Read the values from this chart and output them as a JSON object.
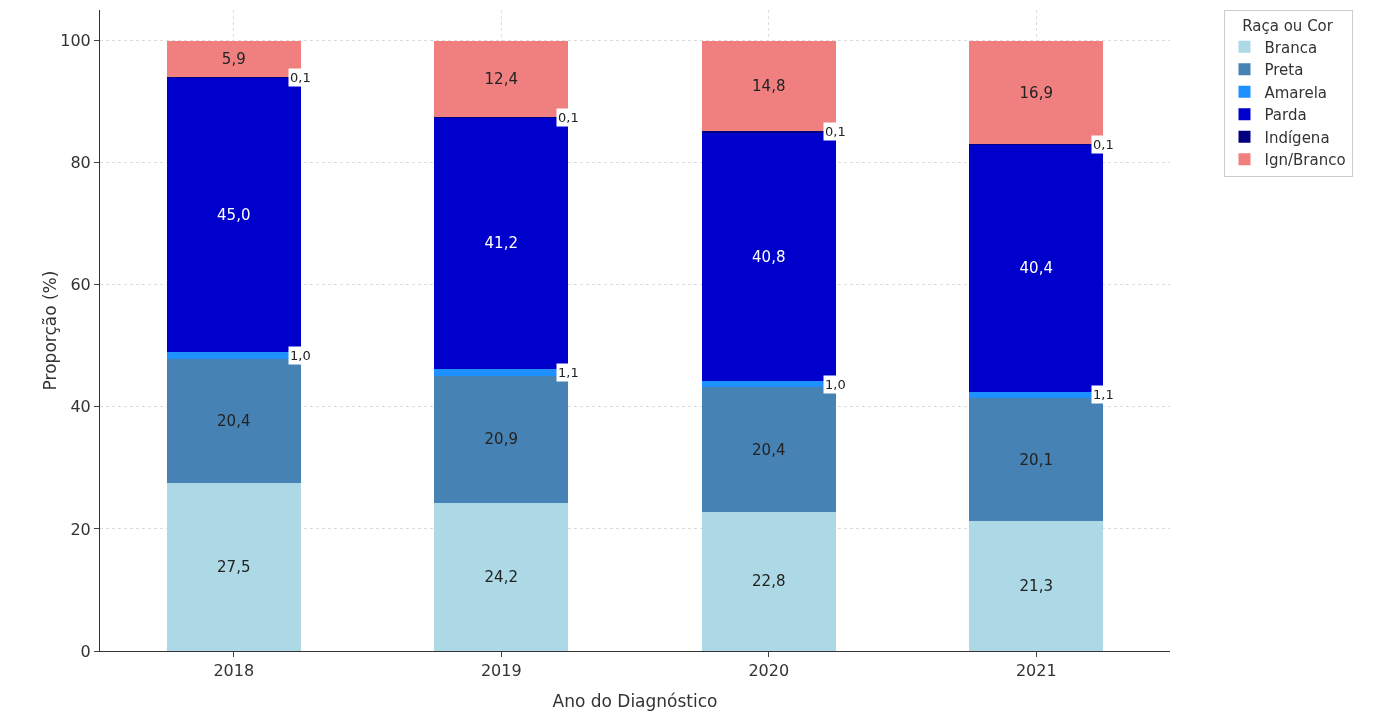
{
  "chart_data": {
    "type": "bar",
    "stacked": true,
    "xlabel": "Ano do Diagnóstico",
    "ylabel": "Proporção (%)",
    "legend_title": "Raça ou Cor",
    "legend": "top right",
    "grid": true,
    "categories": [
      "2018",
      "2019",
      "2020",
      "2021"
    ],
    "ylim": [
      0,
      105
    ],
    "yticks": [
      0,
      20,
      40,
      60,
      80,
      100
    ],
    "series": [
      {
        "name": "Branca",
        "color": "#add8e6",
        "values": [
          27.5,
          24.2,
          22.8,
          21.3
        ],
        "value_labels": [
          "27,5",
          "24,2",
          "22,8",
          "21,3"
        ]
      },
      {
        "name": "Preta",
        "color": "#4682b4",
        "values": [
          20.4,
          20.9,
          20.4,
          20.1
        ],
        "value_labels": [
          "20,4",
          "20,9",
          "20,4",
          "20,1"
        ]
      },
      {
        "name": "Amarela",
        "color": "#1e90ff",
        "values": [
          1.0,
          1.1,
          1.0,
          1.1
        ],
        "value_labels": [
          "1,0",
          "1,1",
          "1,0",
          "1,1"
        ]
      },
      {
        "name": "Parda",
        "color": "#0000cd",
        "values": [
          45.0,
          41.2,
          40.8,
          40.4
        ],
        "value_labels": [
          "45,0",
          "41,2",
          "40,8",
          "40,4"
        ]
      },
      {
        "name": "Indígena",
        "color": "#000080",
        "values": [
          0.1,
          0.1,
          0.1,
          0.1
        ],
        "value_labels": [
          "0,1",
          "0,1",
          "0,1",
          "0,1"
        ]
      },
      {
        "name": "Ign/Branco",
        "color": "#f08080",
        "values": [
          5.9,
          12.4,
          14.8,
          16.9
        ],
        "value_labels": [
          "5,9",
          "12,4",
          "14,8",
          "16,9"
        ]
      }
    ]
  }
}
